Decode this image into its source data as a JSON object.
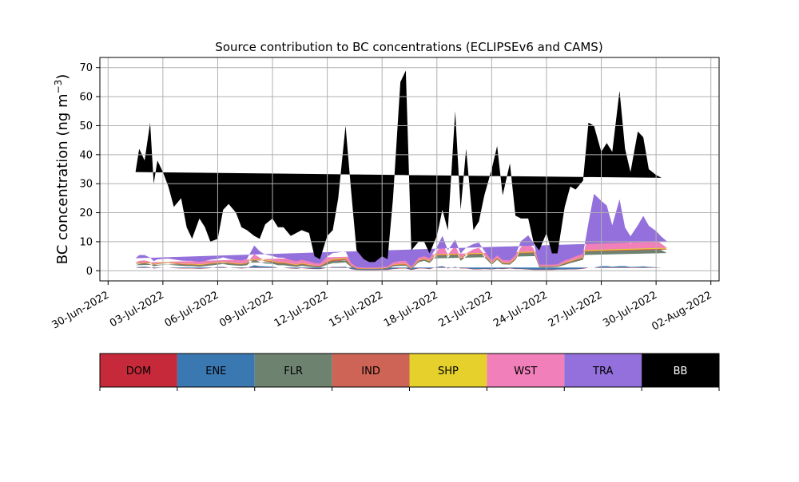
{
  "chart_data": {
    "type": "area",
    "stacked": true,
    "title": "Source contribution to BC concentrations (ECLIPSEv6 and CAMS)",
    "ylabel": "BC concentration (ng m",
    "ylabel_exponent": "−3",
    "ylabel_close": ")",
    "xlabel": "",
    "ylim": [
      -3.5,
      73.5
    ],
    "grid": true,
    "x_range_days": [
      -0.45,
      33.45
    ],
    "x_ticks": [
      {
        "day": 0,
        "label": "30-Jun-2022"
      },
      {
        "day": 3,
        "label": "03-Jul-2022"
      },
      {
        "day": 6,
        "label": "06-Jul-2022"
      },
      {
        "day": 9,
        "label": "09-Jul-2022"
      },
      {
        "day": 12,
        "label": "12-Jul-2022"
      },
      {
        "day": 15,
        "label": "15-Jul-2022"
      },
      {
        "day": 18,
        "label": "18-Jul-2022"
      },
      {
        "day": 21,
        "label": "21-Jul-2022"
      },
      {
        "day": 24,
        "label": "24-Jul-2022"
      },
      {
        "day": 27,
        "label": "27-Jul-2022"
      },
      {
        "day": 30,
        "label": "30-Jul-2022"
      },
      {
        "day": 33,
        "label": "02-Aug-2022"
      }
    ],
    "y_ticks": [
      0,
      10,
      20,
      30,
      40,
      50,
      60,
      70
    ],
    "x_days": [
      1.5,
      1.7,
      2,
      2.3,
      2.5,
      2.7,
      3.0,
      3.3,
      3.6,
      4.0,
      4.3,
      4.6,
      5.0,
      5.3,
      5.6,
      6.0,
      6.3,
      6.6,
      7.0,
      7.3,
      7.6,
      8.0,
      8.3,
      8.6,
      9.0,
      9.3,
      9.6,
      10.0,
      10.3,
      10.6,
      11.0,
      11.3,
      11.6,
      12.0,
      12.3,
      12.6,
      13.0,
      13.3,
      13.6,
      14.0,
      14.3,
      14.6,
      15.0,
      15.3,
      15.6,
      16.0,
      16.3,
      16.6,
      17.0,
      17.3,
      17.6,
      18.0,
      18.3,
      18.6,
      19.0,
      19.3,
      19.6,
      20.0,
      20.3,
      20.6,
      21.0,
      21.3,
      21.6,
      22.0,
      22.3,
      22.6,
      23.0,
      23.3,
      23.6,
      24.0,
      24.3,
      24.6,
      25.0,
      25.3,
      25.6,
      26.0,
      26.3,
      26.6,
      27.0,
      27.3,
      27.6,
      28.0,
      28.3,
      28.6,
      29.0,
      29.3,
      29.6,
      30.0,
      30.3,
      30.6,
      31.0,
      31.3,
      31.6,
      32.0
    ],
    "total": [
      34,
      42,
      38,
      51,
      30,
      38,
      34,
      29,
      22,
      25,
      15,
      11,
      18,
      15,
      10,
      11,
      21,
      23,
      20,
      15,
      14,
      12,
      11,
      16,
      18,
      15,
      15,
      12,
      13,
      14,
      13,
      5,
      4,
      12,
      14,
      25,
      50,
      28,
      7,
      4,
      3,
      3,
      5,
      4,
      25,
      65,
      69,
      7,
      10,
      10,
      6,
      12,
      21,
      14,
      55,
      21,
      42,
      14,
      17,
      26,
      35,
      43,
      26,
      37,
      19,
      18,
      18,
      6,
      7,
      13,
      6,
      6,
      22,
      29,
      28,
      31,
      51,
      50,
      41,
      44,
      41,
      62,
      42,
      34,
      48,
      46,
      35,
      33,
      32,
      32
    ],
    "series": [
      {
        "name": "DOM",
        "color": "#c62a3a",
        "values": [
          1.0,
          1.2,
          1.3,
          1.1,
          0.8,
          0.9,
          1.0,
          1.0,
          0.9,
          0.8,
          0.8,
          0.8,
          0.7,
          0.8,
          0.9,
          1.2,
          1.2,
          1.0,
          0.9,
          0.8,
          0.9,
          1.8,
          1.5,
          1.4,
          1.3,
          1.0,
          1.0,
          0.8,
          0.7,
          0.9,
          0.7,
          0.6,
          0.6,
          1.0,
          1.2,
          1.2,
          1.3,
          0.6,
          0.3,
          0.2,
          0.2,
          0.2,
          0.3,
          0.3,
          0.6,
          0.8,
          0.8,
          0.3,
          0.8,
          0.8,
          0.6,
          1.2,
          1.5,
          0.8,
          1.2,
          0.8,
          0.8,
          0.5,
          0.5,
          0.6,
          0.5,
          0.7,
          0.6,
          0.8,
          0.6,
          0.6,
          0.4,
          0.3,
          0.3,
          0.3,
          0.3,
          0.4,
          0.4,
          0.5,
          0.5,
          0.7,
          1.0,
          1.0,
          1.5,
          1.5,
          1.3,
          1.5,
          1.5,
          1.2,
          1.3,
          1.4,
          1.2,
          1.1,
          1.0,
          1.0
        ]
      },
      {
        "name": "ENE",
        "color": "#3a78b2",
        "values": [
          0.1,
          0.1,
          0.1,
          0.1,
          0.1,
          0.1,
          0.1,
          0.1,
          0.1,
          0.1,
          0.1,
          0.1,
          0.1,
          0.1,
          0.1,
          0.1,
          0.1,
          0.1,
          0.1,
          0.1,
          0.1,
          0.1,
          0.1,
          0.1,
          0.1,
          0.1,
          0.1,
          0.1,
          0.1,
          0.1,
          0.1,
          0.1,
          0.1,
          0.1,
          0.1,
          0.1,
          0.1,
          0.1,
          0.1,
          0.1,
          0.1,
          0.1,
          0.1,
          0.1,
          0.1,
          0.1,
          0.1,
          0.1,
          0.1,
          0.1,
          0.1,
          0.1,
          0.1,
          0.1,
          0.1,
          0.1,
          0.1,
          0.1,
          0.1,
          0.1,
          0.1,
          0.1,
          0.1,
          0.1,
          0.1,
          0.1,
          0.1,
          0.1,
          0.1,
          0.1,
          0.1,
          0.1,
          0.1,
          0.1,
          0.1,
          0.1,
          0.1,
          0.1,
          0.1,
          0.1,
          0.1,
          0.1,
          0.1,
          0.1,
          0.1,
          0.1,
          0.1,
          0.1,
          0.1,
          0.1
        ]
      },
      {
        "name": "FLR",
        "color": "#6e8270",
        "values": [
          0.8,
          1.0,
          1.2,
          1.0,
          0.6,
          0.8,
          0.9,
          1.0,
          0.9,
          0.8,
          0.7,
          0.7,
          0.6,
          0.7,
          0.8,
          0.8,
          1.0,
          0.9,
          0.8,
          0.8,
          0.9,
          2.0,
          1.4,
          1.0,
          1.0,
          0.8,
          0.8,
          0.7,
          0.6,
          0.7,
          0.6,
          0.5,
          0.4,
          1.0,
          1.3,
          1.4,
          1.5,
          0.6,
          0.2,
          0.2,
          0.2,
          0.2,
          0.2,
          0.3,
          0.8,
          0.8,
          0.8,
          0.2,
          2.0,
          2.5,
          2.0,
          4.0,
          6.0,
          3.5,
          6.0,
          2.5,
          4.0,
          6.0,
          6.5,
          4.0,
          1.5,
          3.0,
          1.5,
          1.2,
          3.0,
          6.5,
          8.0,
          6.0,
          0.8,
          0.8,
          0.8,
          0.8,
          1.5,
          2.0,
          2.5,
          3.0,
          10.0,
          16.0,
          14.0,
          14.0,
          9.0,
          15.0,
          8.0,
          6.0,
          8.0,
          10.0,
          8.0,
          7.0,
          6.0,
          5.0
        ]
      },
      {
        "name": "IND",
        "color": "#cd6455",
        "values": [
          0.5,
          0.7,
          0.6,
          0.5,
          0.4,
          0.5,
          0.5,
          0.5,
          0.5,
          0.4,
          0.4,
          0.4,
          0.4,
          0.4,
          0.5,
          0.4,
          0.5,
          0.5,
          0.4,
          0.4,
          0.5,
          1.0,
          0.8,
          0.7,
          0.6,
          0.6,
          0.6,
          0.5,
          0.4,
          0.5,
          0.4,
          0.3,
          0.3,
          0.6,
          0.7,
          0.7,
          0.8,
          0.3,
          0.1,
          0.1,
          0.1,
          0.1,
          0.1,
          0.2,
          0.3,
          0.3,
          0.3,
          0.1,
          0.4,
          0.4,
          0.4,
          0.6,
          0.8,
          0.5,
          0.6,
          0.5,
          0.5,
          0.4,
          0.4,
          0.5,
          0.3,
          0.3,
          0.3,
          0.3,
          0.3,
          0.5,
          0.6,
          0.6,
          0.2,
          0.2,
          0.2,
          0.2,
          0.4,
          0.4,
          0.5,
          0.5,
          1.5,
          2.8,
          2.5,
          2.0,
          1.5,
          2.5,
          1.5,
          1.5,
          2.0,
          2.5,
          2.0,
          1.8,
          1.5,
          1.2
        ]
      },
      {
        "name": "SHP",
        "color": "#e6d02c",
        "values": [
          0.2,
          0.2,
          0.2,
          0.2,
          0.2,
          0.2,
          0.2,
          0.2,
          0.2,
          0.2,
          0.2,
          0.2,
          0.2,
          0.2,
          0.2,
          0.2,
          0.2,
          0.2,
          0.2,
          0.2,
          0.2,
          0.5,
          0.4,
          0.3,
          0.3,
          0.3,
          0.3,
          0.2,
          0.2,
          0.2,
          0.2,
          0.2,
          0.2,
          0.4,
          0.5,
          0.5,
          0.5,
          0.2,
          0.1,
          0.1,
          0.1,
          0.1,
          0.1,
          0.1,
          0.2,
          0.2,
          0.2,
          0.1,
          0.2,
          0.2,
          0.2,
          0.4,
          0.8,
          0.4,
          0.5,
          0.3,
          0.4,
          0.2,
          0.2,
          0.2,
          0.2,
          0.2,
          0.2,
          0.2,
          0.2,
          0.3,
          0.3,
          0.3,
          0.1,
          0.1,
          0.1,
          0.1,
          0.2,
          0.2,
          0.2,
          0.3,
          0.5,
          0.6,
          0.5,
          0.5,
          0.4,
          0.5,
          0.4,
          0.3,
          0.4,
          0.5,
          0.4,
          0.4,
          0.3,
          0.3
        ]
      },
      {
        "name": "WST",
        "color": "#f07fba",
        "values": [
          0.2,
          0.2,
          0.2,
          0.2,
          0.2,
          0.2,
          0.2,
          0.2,
          0.2,
          0.2,
          0.2,
          0.2,
          0.2,
          0.2,
          0.2,
          0.2,
          0.2,
          0.2,
          0.2,
          0.2,
          0.2,
          0.3,
          0.3,
          0.3,
          0.2,
          0.2,
          0.2,
          0.2,
          0.2,
          0.2,
          0.2,
          0.1,
          0.1,
          0.2,
          0.3,
          0.3,
          0.3,
          0.1,
          0.1,
          0.1,
          0.1,
          0.1,
          0.1,
          0.1,
          0.1,
          0.2,
          0.2,
          0.1,
          0.2,
          0.2,
          0.2,
          0.3,
          0.3,
          0.2,
          0.3,
          0.2,
          0.2,
          0.2,
          0.2,
          0.2,
          0.2,
          0.2,
          0.2,
          0.2,
          0.2,
          0.2,
          0.3,
          0.2,
          0.1,
          0.1,
          0.1,
          0.1,
          0.2,
          0.2,
          0.2,
          0.2,
          0.4,
          0.5,
          0.5,
          0.4,
          0.4,
          0.5,
          0.4,
          0.3,
          0.4,
          0.4,
          0.3,
          0.3,
          0.3,
          0.3
        ]
      },
      {
        "name": "TRA",
        "color": "#9370db",
        "values": [
          1.5,
          2.0,
          1.8,
          1.4,
          1.0,
          1.2,
          1.2,
          1.2,
          1.1,
          1.0,
          1.0,
          1.0,
          0.9,
          1.0,
          1.1,
          1.2,
          1.4,
          1.2,
          1.1,
          1.1,
          1.2,
          3.0,
          2.2,
          1.8,
          1.6,
          1.5,
          1.5,
          1.2,
          1.1,
          1.2,
          1.0,
          0.8,
          0.8,
          1.6,
          2.0,
          2.1,
          2.2,
          0.9,
          0.4,
          0.3,
          0.3,
          0.3,
          0.4,
          0.4,
          0.8,
          1.0,
          1.0,
          0.4,
          0.8,
          0.8,
          0.8,
          1.5,
          2.5,
          1.5,
          2.0,
          1.5,
          2.0,
          1.8,
          1.8,
          1.2,
          0.8,
          0.8,
          0.8,
          0.8,
          1.0,
          2.0,
          2.5,
          2.0,
          0.5,
          0.5,
          0.5,
          0.5,
          0.8,
          0.8,
          1.0,
          1.0,
          3.0,
          5.5,
          5.0,
          4.0,
          3.0,
          4.5,
          3.0,
          2.5,
          3.5,
          4.0,
          3.5,
          3.0,
          2.5,
          2.2
        ]
      }
    ],
    "background_series": {
      "name": "BB",
      "color": "#000000"
    },
    "legend": [
      {
        "name": "DOM",
        "color": "#c62a3a",
        "text_color": "#000000"
      },
      {
        "name": "ENE",
        "color": "#3a78b2",
        "text_color": "#000000"
      },
      {
        "name": "FLR",
        "color": "#6e8270",
        "text_color": "#000000"
      },
      {
        "name": "IND",
        "color": "#cd6455",
        "text_color": "#000000"
      },
      {
        "name": "SHP",
        "color": "#e6d02c",
        "text_color": "#000000"
      },
      {
        "name": "WST",
        "color": "#f07fba",
        "text_color": "#000000"
      },
      {
        "name": "TRA",
        "color": "#9370db",
        "text_color": "#000000"
      },
      {
        "name": "BB",
        "color": "#000000",
        "text_color": "#ffffff"
      }
    ]
  }
}
